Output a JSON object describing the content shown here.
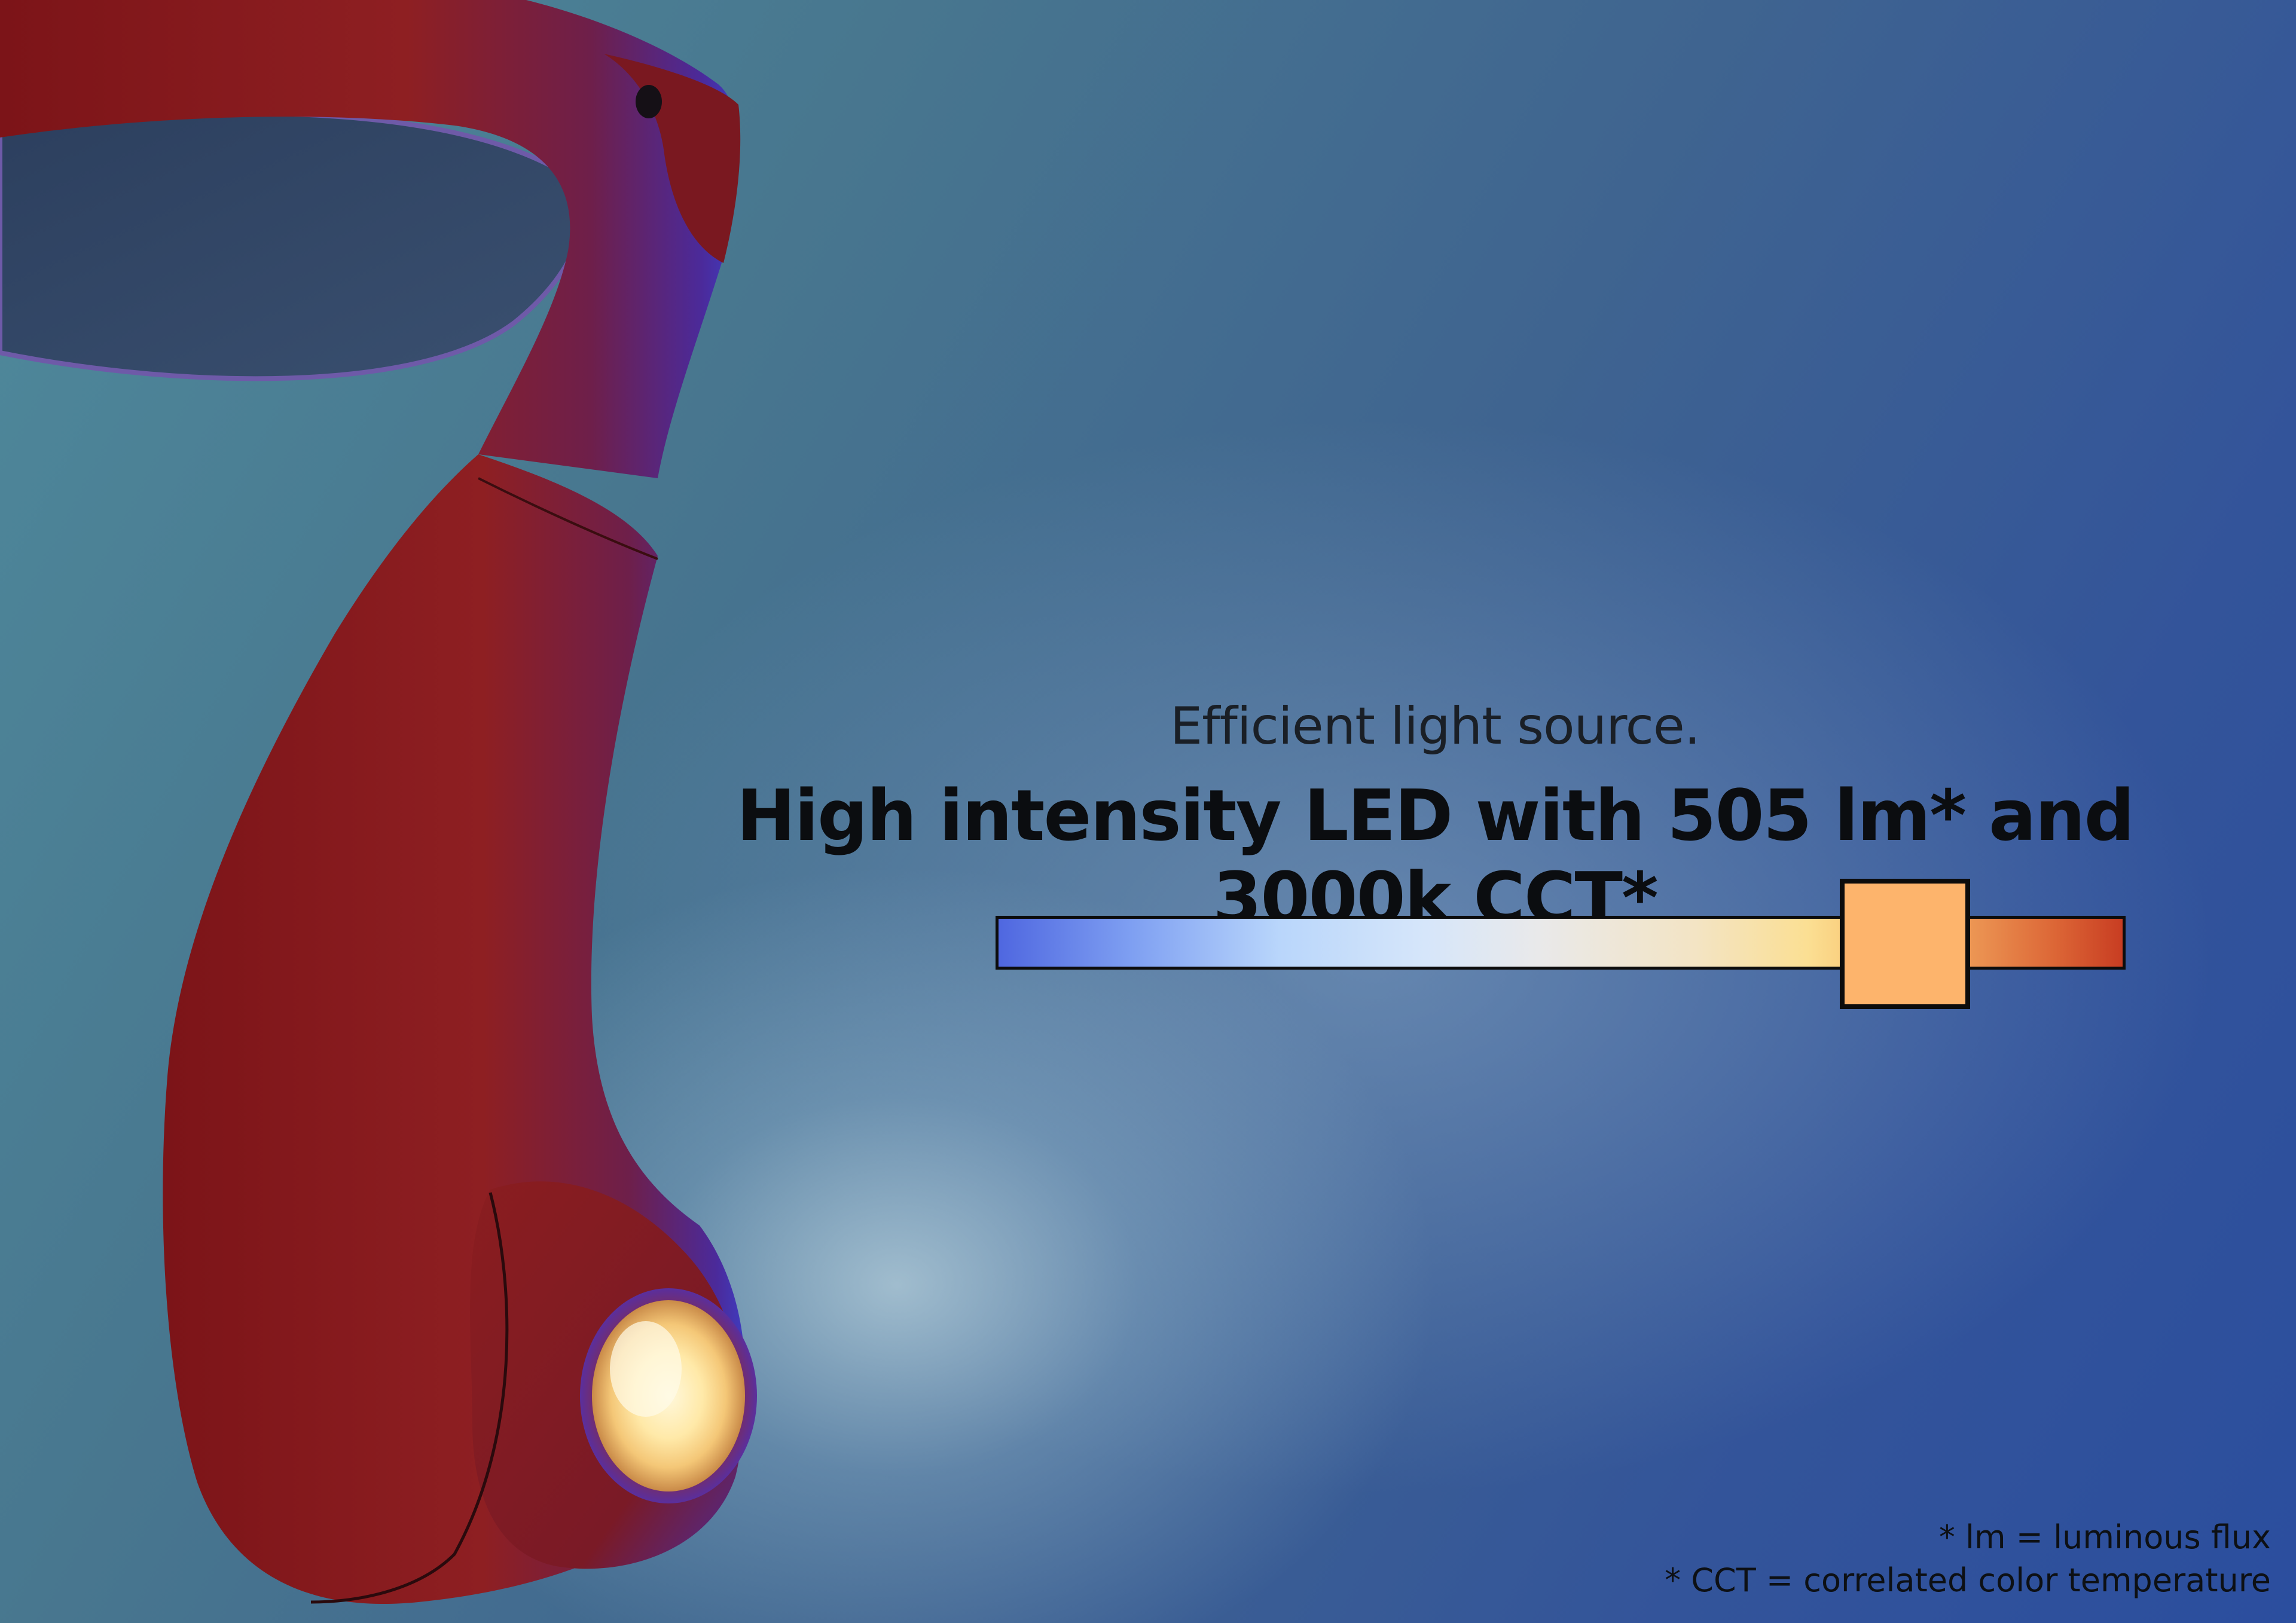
{
  "headline": {
    "subtitle": "Efficient light source.",
    "title": "High intensity LED with 505 lm* and 3000k CCT*"
  },
  "color_temperature_scale": {
    "selected_fraction": 0.805,
    "knob_color": "#fdb46c",
    "gradient_start_color": "#4f67e0",
    "gradient_end_color": "#c83d22"
  },
  "footnotes": {
    "lm": "* lm = luminous flux",
    "cct": "* CCT = correlated color temperature"
  },
  "product": {
    "body_color": "#8a1d1d",
    "light_color": "#fff3c8"
  }
}
